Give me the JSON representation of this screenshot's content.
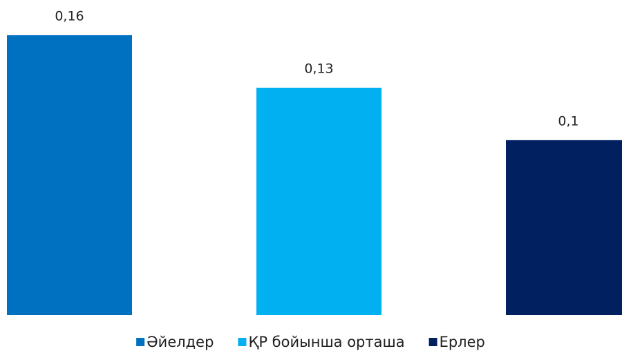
{
  "chart_data": {
    "type": "bar",
    "categories": [
      null
    ],
    "series": [
      {
        "name": "Әйелдер",
        "color": "#0070c0",
        "values": [
          0.16
        ],
        "value_labels": [
          "0,16"
        ]
      },
      {
        "name": "ҚР бойынша орташа",
        "color": "#00b0f0",
        "values": [
          0.13
        ],
        "value_labels": [
          "0,13"
        ]
      },
      {
        "name": "Ерлер",
        "color": "#002060",
        "values": [
          0.1
        ],
        "value_labels": [
          "0,1"
        ]
      }
    ],
    "legend": "bottom"
  }
}
